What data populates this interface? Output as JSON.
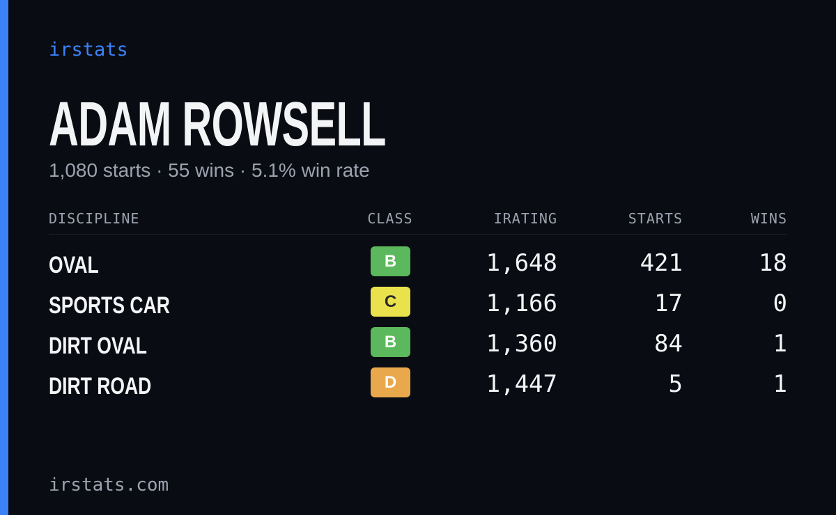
{
  "brand": "irstats",
  "profile": {
    "name": "ADAM ROWSELL",
    "summary": "1,080 starts · 55 wins · 5.1% win rate"
  },
  "table": {
    "headers": [
      "DISCIPLINE",
      "CLASS",
      "IRATING",
      "STARTS",
      "WINS"
    ],
    "rows": [
      {
        "discipline": "OVAL",
        "class": "B",
        "class_color": "#5cb85c",
        "irating": "1,648",
        "starts": "421",
        "wins": "18"
      },
      {
        "discipline": "SPORTS CAR",
        "class": "C",
        "class_color": "#e9e24c",
        "irating": "1,166",
        "starts": "17",
        "wins": "0"
      },
      {
        "discipline": "DIRT OVAL",
        "class": "B",
        "class_color": "#5cb85c",
        "irating": "1,360",
        "starts": "84",
        "wins": "1"
      },
      {
        "discipline": "DIRT ROAD",
        "class": "D",
        "class_color": "#eaa84c",
        "irating": "1,447",
        "starts": "5",
        "wins": "1"
      }
    ]
  },
  "footer": {
    "url": "irstats.com"
  }
}
